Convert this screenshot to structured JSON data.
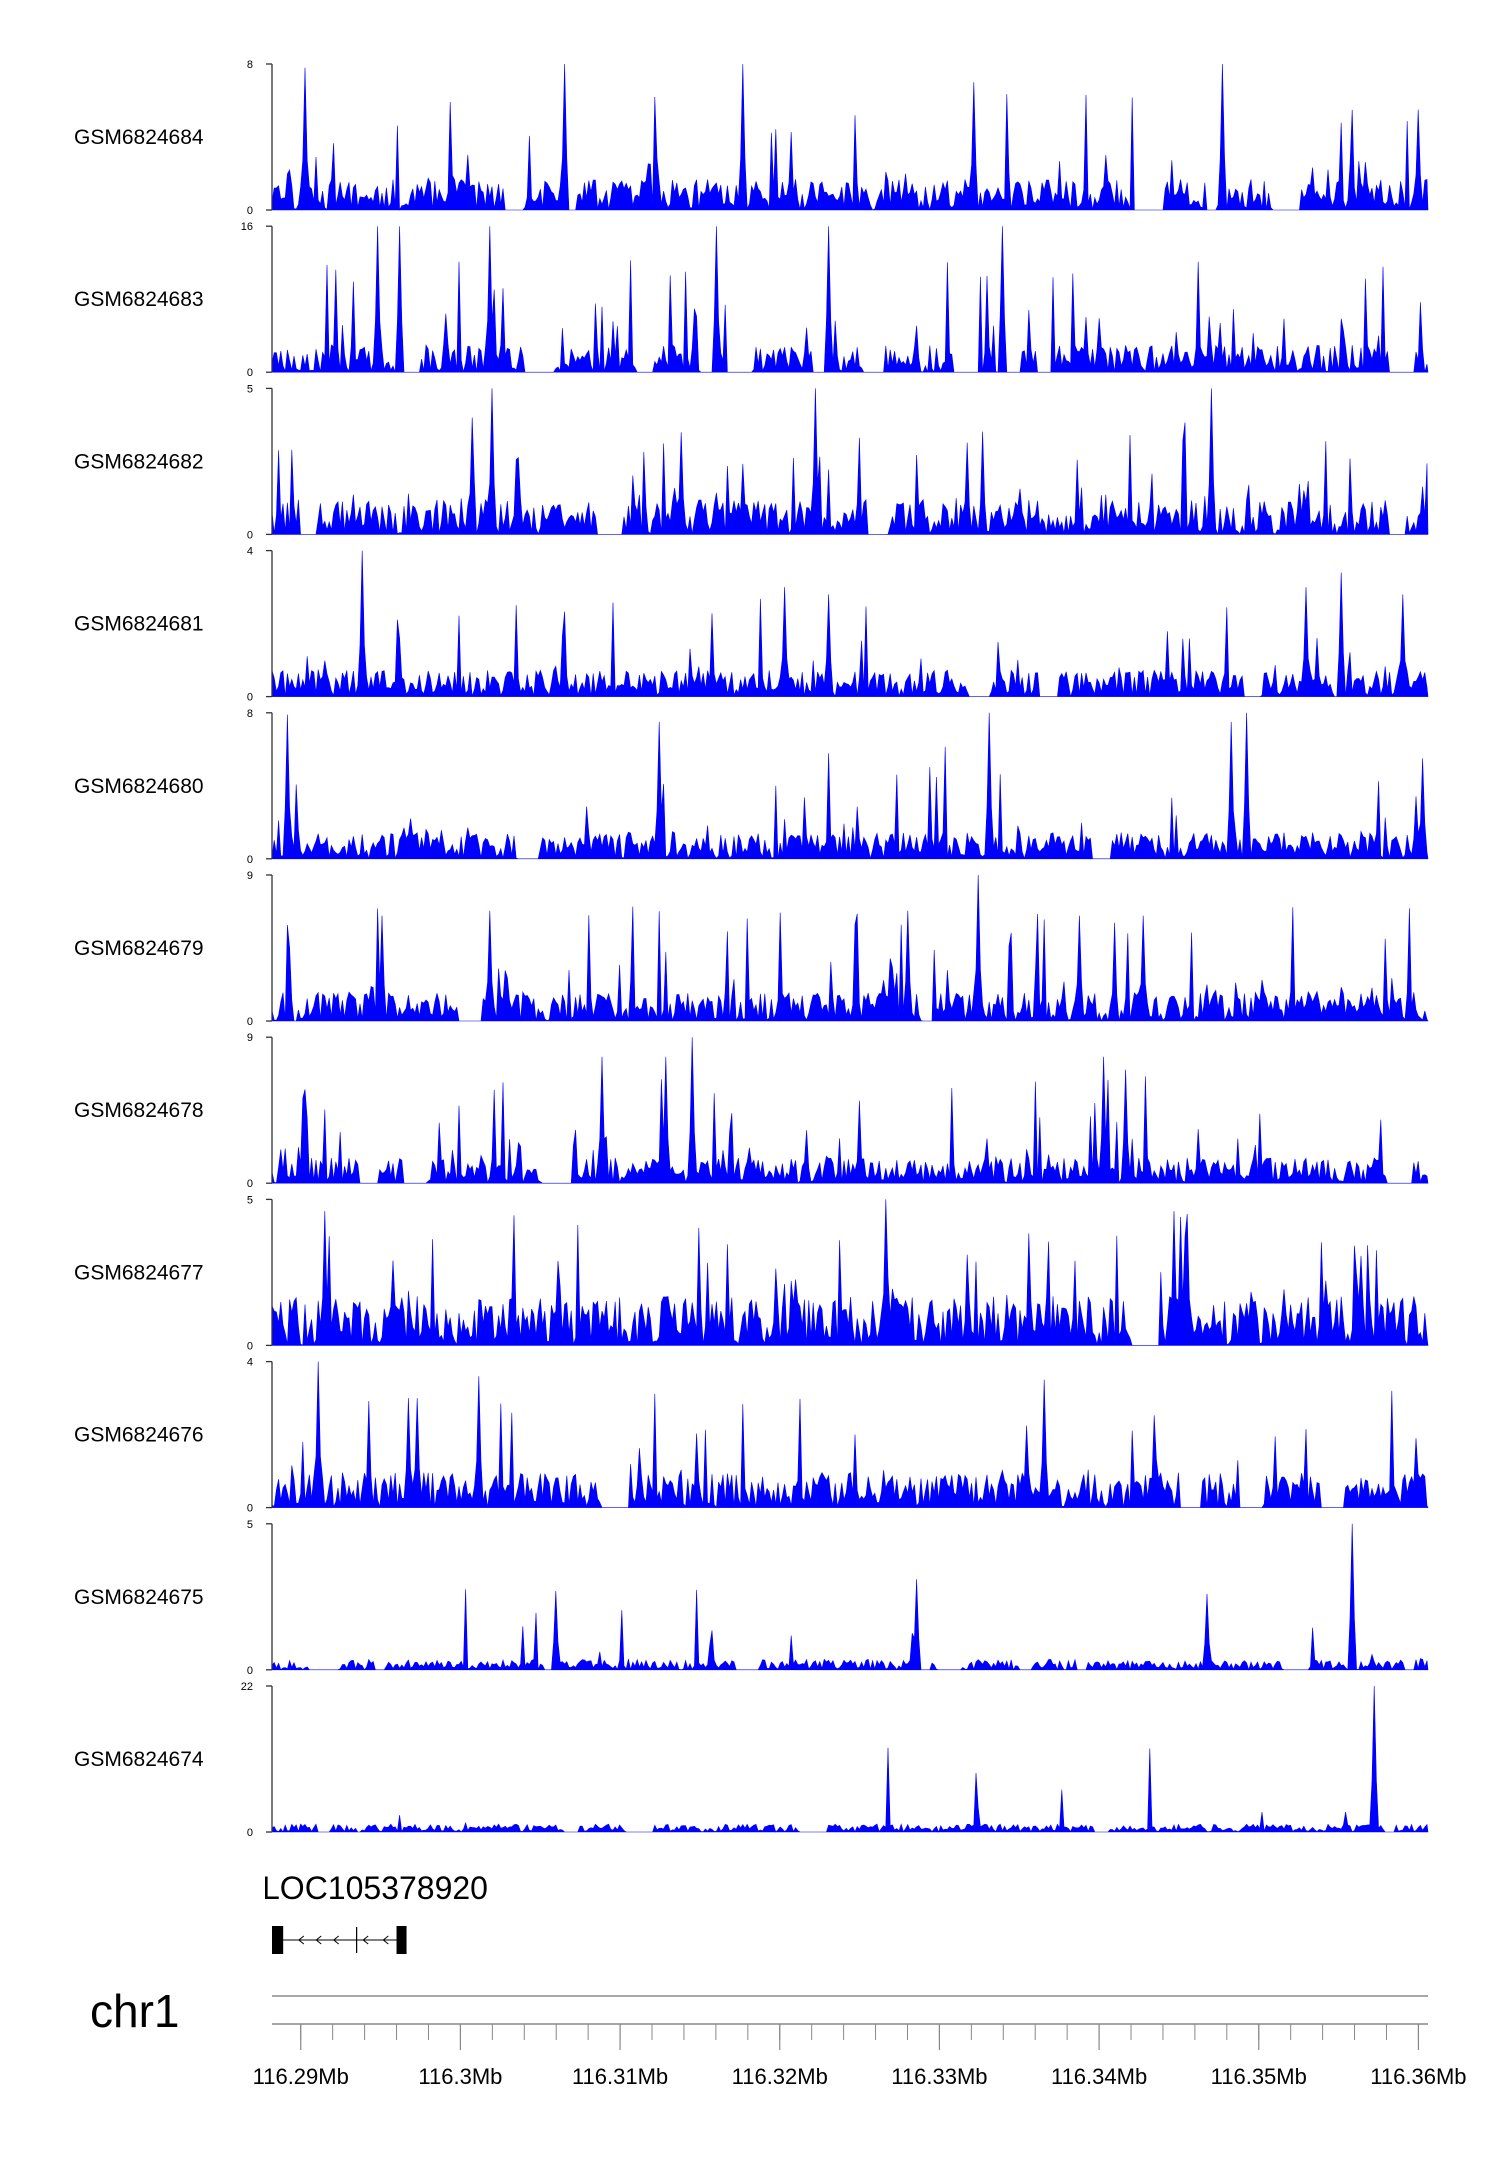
{
  "chart_data": {
    "type": "area",
    "fill_color": "#0000ff",
    "gene_color": "#000000",
    "x_range_mb": [
      116.2882,
      116.3606
    ],
    "tracks": [
      {
        "name": "GSM6824684",
        "ylim": [
          0,
          8
        ],
        "ytick_labels": [
          "0",
          "8"
        ],
        "seed": 11,
        "base": 1.4,
        "spike_p": 0.09,
        "gap_p": 0.04,
        "spikes": [
          [
            116.2903,
            7.8
          ],
          [
            116.3065,
            8.0
          ],
          [
            116.3177,
            8.0
          ],
          [
            116.3322,
            7.0
          ],
          [
            116.3477,
            8.0
          ],
          [
            116.36,
            5.5
          ]
        ]
      },
      {
        "name": "GSM6824683",
        "ylim": [
          0,
          16
        ],
        "ytick_labels": [
          "0",
          "16"
        ],
        "seed": 23,
        "base": 2.5,
        "spike_p": 0.16,
        "gap_p": 0.1,
        "spikes": [
          [
            116.2948,
            16.0
          ],
          [
            116.2962,
            16.0
          ],
          [
            116.3018,
            16.0
          ],
          [
            116.316,
            16.0
          ],
          [
            116.3231,
            16.0
          ],
          [
            116.3339,
            16.0
          ]
        ]
      },
      {
        "name": "GSM6824682",
        "ylim": [
          0,
          5
        ],
        "ytick_labels": [
          "0",
          "5"
        ],
        "seed": 37,
        "base": 1.0,
        "spike_p": 0.1,
        "gap_p": 0.03,
        "spikes": [
          [
            116.302,
            5.0
          ],
          [
            116.3223,
            5.0
          ],
          [
            116.3471,
            5.0
          ],
          [
            116.3008,
            4.0
          ],
          [
            116.3138,
            3.5
          ]
        ]
      },
      {
        "name": "GSM6824681",
        "ylim": [
          0,
          4
        ],
        "ytick_labels": [
          "0",
          "4"
        ],
        "seed": 41,
        "base": 0.6,
        "spike_p": 0.08,
        "gap_p": 0.04,
        "spikes": [
          [
            116.2938,
            4.0
          ],
          [
            116.3203,
            3.0
          ],
          [
            116.323,
            2.8
          ],
          [
            116.353,
            3.0
          ],
          [
            116.3552,
            3.4
          ],
          [
            116.359,
            2.8
          ]
        ]
      },
      {
        "name": "GSM6824680",
        "ylim": [
          0,
          8
        ],
        "ytick_labels": [
          "0",
          "8"
        ],
        "seed": 53,
        "base": 1.2,
        "spike_p": 0.09,
        "gap_p": 0.03,
        "spikes": [
          [
            116.2892,
            7.9
          ],
          [
            116.3125,
            7.5
          ],
          [
            116.3331,
            8.0
          ],
          [
            116.3483,
            7.5
          ],
          [
            116.3492,
            8.0
          ],
          [
            116.3602,
            5.5
          ]
        ]
      },
      {
        "name": "GSM6824679",
        "ylim": [
          0,
          9
        ],
        "ytick_labels": [
          "0",
          "9"
        ],
        "seed": 67,
        "base": 1.5,
        "spike_p": 0.1,
        "gap_p": 0.03,
        "spikes": [
          [
            116.2951,
            6.5
          ],
          [
            116.3018,
            6.8
          ],
          [
            116.328,
            6.8
          ],
          [
            116.3324,
            9.0
          ],
          [
            116.3388,
            6.5
          ],
          [
            116.3428,
            6.5
          ]
        ]
      },
      {
        "name": "GSM6824678",
        "ylim": [
          0,
          9
        ],
        "ytick_labels": [
          "0",
          "9"
        ],
        "seed": 79,
        "base": 1.3,
        "spike_p": 0.1,
        "gap_p": 0.04,
        "spikes": [
          [
            116.3089,
            7.8
          ],
          [
            116.3128,
            7.8
          ],
          [
            116.3145,
            9.0
          ],
          [
            116.3403,
            7.8
          ],
          [
            116.3416,
            7.0
          ]
        ]
      },
      {
        "name": "GSM6824677",
        "ylim": [
          0,
          5
        ],
        "ytick_labels": [
          "0",
          "5"
        ],
        "seed": 83,
        "base": 1.4,
        "spike_p": 0.12,
        "gap_p": 0.01,
        "spikes": [
          [
            116.2915,
            4.6
          ],
          [
            116.3266,
            5.0
          ],
          [
            116.3447,
            4.6
          ],
          [
            116.3451,
            4.4
          ],
          [
            116.3455,
            4.5
          ]
        ]
      },
      {
        "name": "GSM6824676",
        "ylim": [
          0,
          4
        ],
        "ytick_labels": [
          "0",
          "4"
        ],
        "seed": 97,
        "base": 0.8,
        "spike_p": 0.09,
        "gap_p": 0.04,
        "spikes": [
          [
            116.2911,
            4.0
          ],
          [
            116.2968,
            3.0
          ],
          [
            116.2973,
            3.0
          ],
          [
            116.3011,
            3.6
          ],
          [
            116.3365,
            3.5
          ],
          [
            116.3598,
            1.9
          ]
        ]
      },
      {
        "name": "GSM6824675",
        "ylim": [
          0,
          5
        ],
        "ytick_labels": [
          "0",
          "5"
        ],
        "seed": 101,
        "base": 0.3,
        "spike_p": 0.05,
        "gap_p": 0.05,
        "spikes": [
          [
            116.306,
            2.7
          ],
          [
            116.3286,
            3.1
          ],
          [
            116.3467,
            2.6
          ],
          [
            116.3558,
            5.0
          ]
        ]
      },
      {
        "name": "GSM6824674",
        "ylim": [
          0,
          22
        ],
        "ytick_labels": [
          "0",
          "22"
        ],
        "seed": 113,
        "base": 1.0,
        "spike_p": 0.02,
        "gap_p": 0.05,
        "spikes": [
          [
            116.3555,
            3.0
          ],
          [
            116.3572,
            22.0
          ]
        ]
      }
    ],
    "gene": {
      "label": "LOC105378920",
      "start_mb": 116.2882,
      "end_mb": 116.2966,
      "exons_mb": [
        [
          116.2882,
          116.2889
        ],
        [
          116.296,
          116.2966
        ]
      ],
      "mid_mb": 116.2935,
      "strand": "-"
    },
    "chromosome": "chr1",
    "axis_labels": [
      "116.29Mb",
      "116.3Mb",
      "116.31Mb",
      "116.32Mb",
      "116.33Mb",
      "116.34Mb",
      "116.35Mb",
      "116.36Mb"
    ],
    "axis_values": [
      116.29,
      116.3,
      116.31,
      116.32,
      116.33,
      116.34,
      116.35,
      116.36
    ],
    "minor_tick_step_mb": 0.002
  }
}
